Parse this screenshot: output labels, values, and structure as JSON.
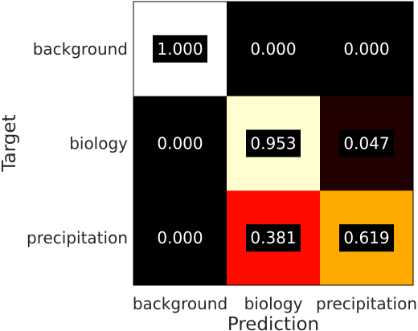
{
  "chart_data": {
    "type": "heatmap",
    "rows": [
      "background",
      "biology",
      "precipitation"
    ],
    "columns": [
      "background",
      "biology",
      "precipitation"
    ],
    "values": [
      [
        1.0,
        0.0,
        0.0
      ],
      [
        0.0,
        0.953,
        0.047
      ],
      [
        0.0,
        0.381,
        0.619
      ]
    ],
    "labels": [
      [
        "1.000",
        "0.000",
        "0.000"
      ],
      [
        "0.000",
        "0.953",
        "0.047"
      ],
      [
        "0.000",
        "0.381",
        "0.619"
      ]
    ],
    "xlabel": "Prediction",
    "ylabel": "Target",
    "colormap": "hot",
    "label_box_color": "#000000",
    "label_text_color": "#ffffff"
  }
}
